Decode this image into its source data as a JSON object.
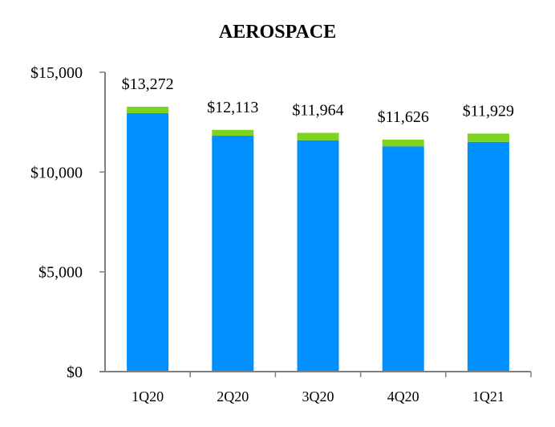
{
  "chart_data": {
    "type": "bar",
    "title": "AEROSPACE",
    "categories": [
      "1Q20",
      "2Q20",
      "3Q20",
      "4Q20",
      "1Q21"
    ],
    "series": [
      {
        "values": [
          12950,
          11820,
          11590,
          11280,
          11510
        ]
      },
      {
        "values": [
          322,
          293,
          374,
          346,
          419
        ]
      }
    ],
    "totals": [
      13272,
      12113,
      11964,
      11626,
      11929
    ],
    "data_labels": [
      "$13,272",
      "$12,113",
      "$11,964",
      "$11,626",
      "$11,929"
    ],
    "y_ticks": [
      0,
      5000,
      10000,
      15000
    ],
    "y_tick_labels": [
      "$0",
      "$5,000",
      "$10,000",
      "$15,000"
    ],
    "ylim": [
      0,
      15000
    ],
    "stacked": true,
    "grid": false,
    "colors": {
      "series": [
        "#0090ff",
        "#7ed321"
      ],
      "axis": "#808080"
    }
  }
}
